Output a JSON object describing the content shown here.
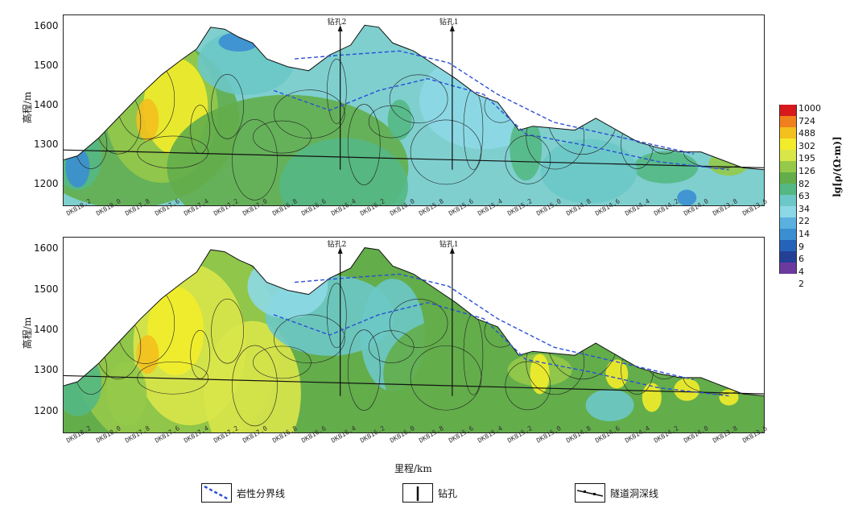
{
  "chart_data": [
    {
      "type": "heatmap",
      "title": "",
      "xlabel": "",
      "ylabel": "高程/m",
      "ylim": [
        1150,
        1630
      ],
      "yticks": [
        1200,
        1300,
        1400,
        1500,
        1600
      ],
      "xticks": [
        "DK818.2",
        "DK818.0",
        "DK817.8",
        "DK817.6",
        "DK817.4",
        "DK817.2",
        "DK817.0",
        "DK816.8",
        "DK816.6",
        "DK816.4",
        "DK816.2",
        "DK816.0",
        "DK815.8",
        "DK815.6",
        "DK815.4",
        "DK815.2",
        "DK815.0",
        "DK814.8",
        "DK814.6",
        "DK814.4",
        "DK814.2",
        "DK814.0",
        "DK813.8",
        "DK813.6"
      ],
      "boreholes": [
        "钻孔2",
        "钻孔1"
      ]
    },
    {
      "type": "heatmap",
      "title": "",
      "xlabel": "里程/km",
      "ylabel": "高程/m",
      "ylim": [
        1150,
        1630
      ],
      "yticks": [
        1200,
        1300,
        1400,
        1500,
        1600
      ],
      "xticks": [
        "DK818.2",
        "DK818.0",
        "DK817.8",
        "DK817.6",
        "DK817.4",
        "DK817.2",
        "DK817.0",
        "DK816.8",
        "DK816.6",
        "DK816.4",
        "DK816.2",
        "DK816.0",
        "DK815.8",
        "DK815.6",
        "DK815.4",
        "DK815.2",
        "DK815.0",
        "DK814.8",
        "DK814.6",
        "DK814.4",
        "DK814.2",
        "DK814.0",
        "DK813.8",
        "DK813.6"
      ],
      "boreholes": [
        "钻孔2",
        "钻孔1"
      ]
    }
  ],
  "colorbar": {
    "title": "lg[ρ/(Ω·m)]",
    "labels": [
      "1000",
      "724",
      "488",
      "302",
      "195",
      "126",
      "82",
      "63",
      "34",
      "22",
      "14",
      "9",
      "6",
      "4",
      "2"
    ],
    "colors": [
      "#d7191c",
      "#f07f1e",
      "#f4c01e",
      "#f2ec2b",
      "#d9e64a",
      "#95c949",
      "#63ad4b",
      "#54b884",
      "#6cc8c6",
      "#8dd8e6",
      "#5ab1df",
      "#3b8ed2",
      "#2563b8",
      "#243f96",
      "#6a3a9e"
    ]
  },
  "legend": {
    "boundary": "岩性分界线",
    "borehole": "钻孔",
    "tunnel": "隧道洞深线"
  }
}
